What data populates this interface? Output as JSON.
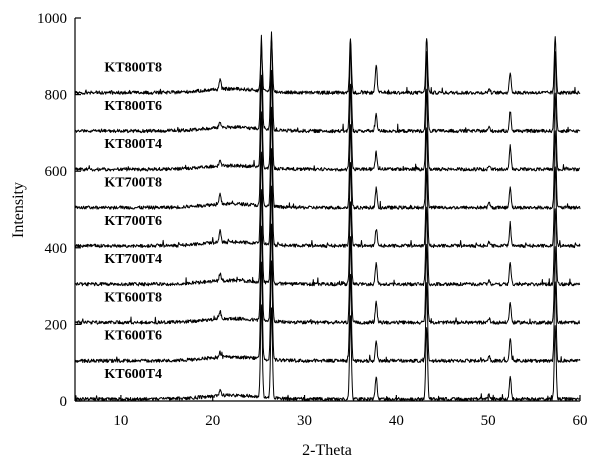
{
  "chart_data": {
    "type": "line",
    "xlabel": "2-Theta",
    "ylabel": "Intensity",
    "xlim": [
      5,
      60
    ],
    "ylim": [
      0,
      1000
    ],
    "xticks": [
      "10",
      "20",
      "30",
      "40",
      "50",
      "60"
    ],
    "yticks": [
      "0",
      "200",
      "400",
      "600",
      "800",
      "1000"
    ],
    "grid": false,
    "legend": "none",
    "peaks_2theta": [
      20.8,
      25.3,
      26.4,
      35.0,
      37.8,
      43.3,
      50.1,
      52.4,
      57.3
    ],
    "series": [
      {
        "name": "KT600T4",
        "baseline": 5,
        "peaks": [
          12,
          240,
          235,
          220,
          60,
          190,
          12,
          60,
          190
        ]
      },
      {
        "name": "KT600T6",
        "baseline": 105,
        "peaks": [
          12,
          250,
          260,
          225,
          52,
          200,
          14,
          60,
          205
        ]
      },
      {
        "name": "KT600T8",
        "baseline": 205,
        "peaks": [
          20,
          245,
          255,
          220,
          55,
          200,
          12,
          52,
          195
        ]
      },
      {
        "name": "KT700T4",
        "baseline": 305,
        "peaks": [
          20,
          240,
          255,
          215,
          55,
          200,
          10,
          55,
          200
        ]
      },
      {
        "name": "KT700T6",
        "baseline": 405,
        "peaks": [
          32,
          240,
          250,
          220,
          45,
          195,
          10,
          50,
          205
        ]
      },
      {
        "name": "KT700T8",
        "baseline": 505,
        "peaks": [
          25,
          245,
          255,
          215,
          50,
          210,
          12,
          55,
          200
        ]
      },
      {
        "name": "KT800T4",
        "baseline": 605,
        "peaks": [
          15,
          240,
          255,
          220,
          45,
          205,
          10,
          60,
          200
        ]
      },
      {
        "name": "KT800T6",
        "baseline": 705,
        "peaks": [
          15,
          245,
          255,
          220,
          45,
          205,
          10,
          52,
          205
        ]
      },
      {
        "name": "KT800T8",
        "baseline": 805,
        "peaks": [
          25,
          110,
          140,
          145,
          75,
          145,
          10,
          55,
          145
        ]
      }
    ]
  }
}
